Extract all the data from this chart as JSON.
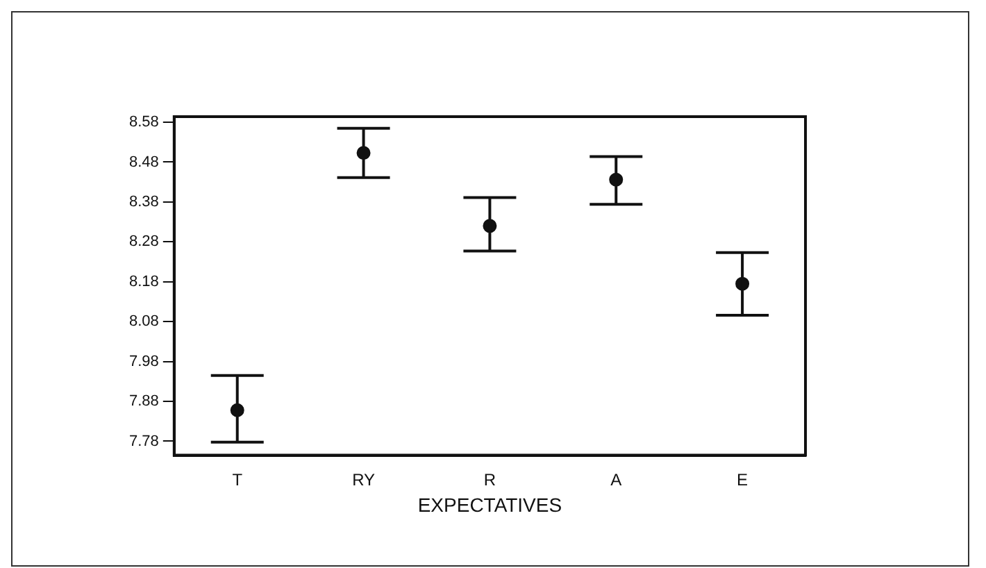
{
  "chart_data": {
    "type": "scatter",
    "xlabel": "EXPECTATIVES",
    "categories": [
      "T",
      "RY",
      "R",
      "A",
      "E"
    ],
    "values": [
      7.858,
      8.503,
      8.32,
      8.436,
      8.175
    ],
    "errors": [
      [
        7.778,
        7.945
      ],
      [
        8.441,
        8.565
      ],
      [
        8.257,
        8.391
      ],
      [
        8.374,
        8.494
      ],
      [
        8.096,
        8.253
      ]
    ],
    "color": "#111111",
    "marker": "circle",
    "grid": false,
    "legend": false,
    "ylim": [
      7.745,
      8.594
    ],
    "yticks": [
      7.78,
      7.88,
      7.98,
      8.08,
      8.18,
      8.28,
      8.38,
      8.48,
      8.58
    ]
  }
}
